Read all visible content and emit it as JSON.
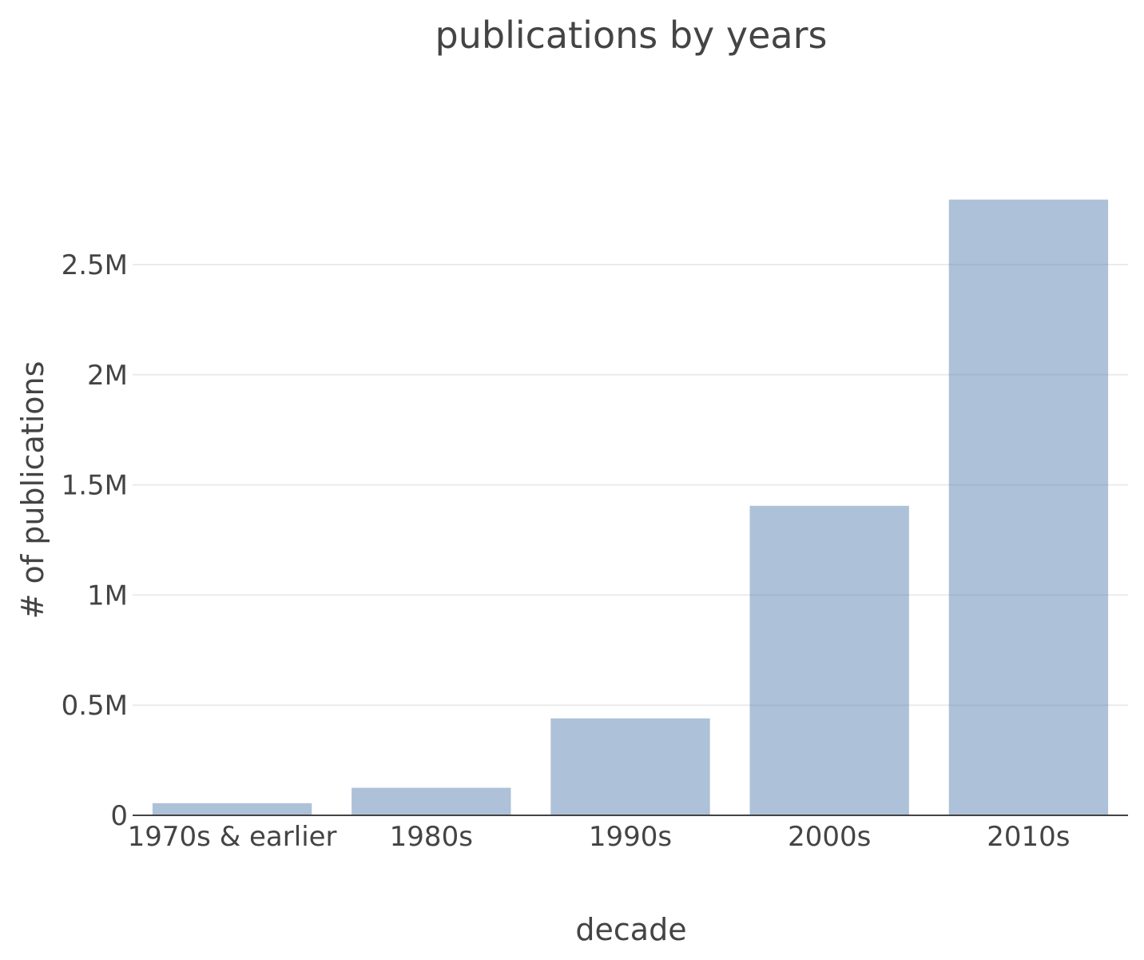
{
  "chart_data": {
    "type": "bar",
    "title": "publications by years",
    "xlabel": "decade",
    "ylabel": "# of publications",
    "categories": [
      "1970s & earlier",
      "1980s",
      "1990s",
      "2000s",
      "2010s"
    ],
    "values": [
      55000,
      125000,
      440000,
      1405000,
      2795000
    ],
    "ylim": [
      0,
      3000000
    ],
    "yticks": [
      0,
      500000,
      1000000,
      1500000,
      2000000,
      2500000
    ],
    "ytick_labels": [
      "0",
      "0.5M",
      "1M",
      "1.5M",
      "2M",
      "2.5M"
    ],
    "grid": true,
    "legend": "none",
    "bar_color": "#5b84b1"
  }
}
